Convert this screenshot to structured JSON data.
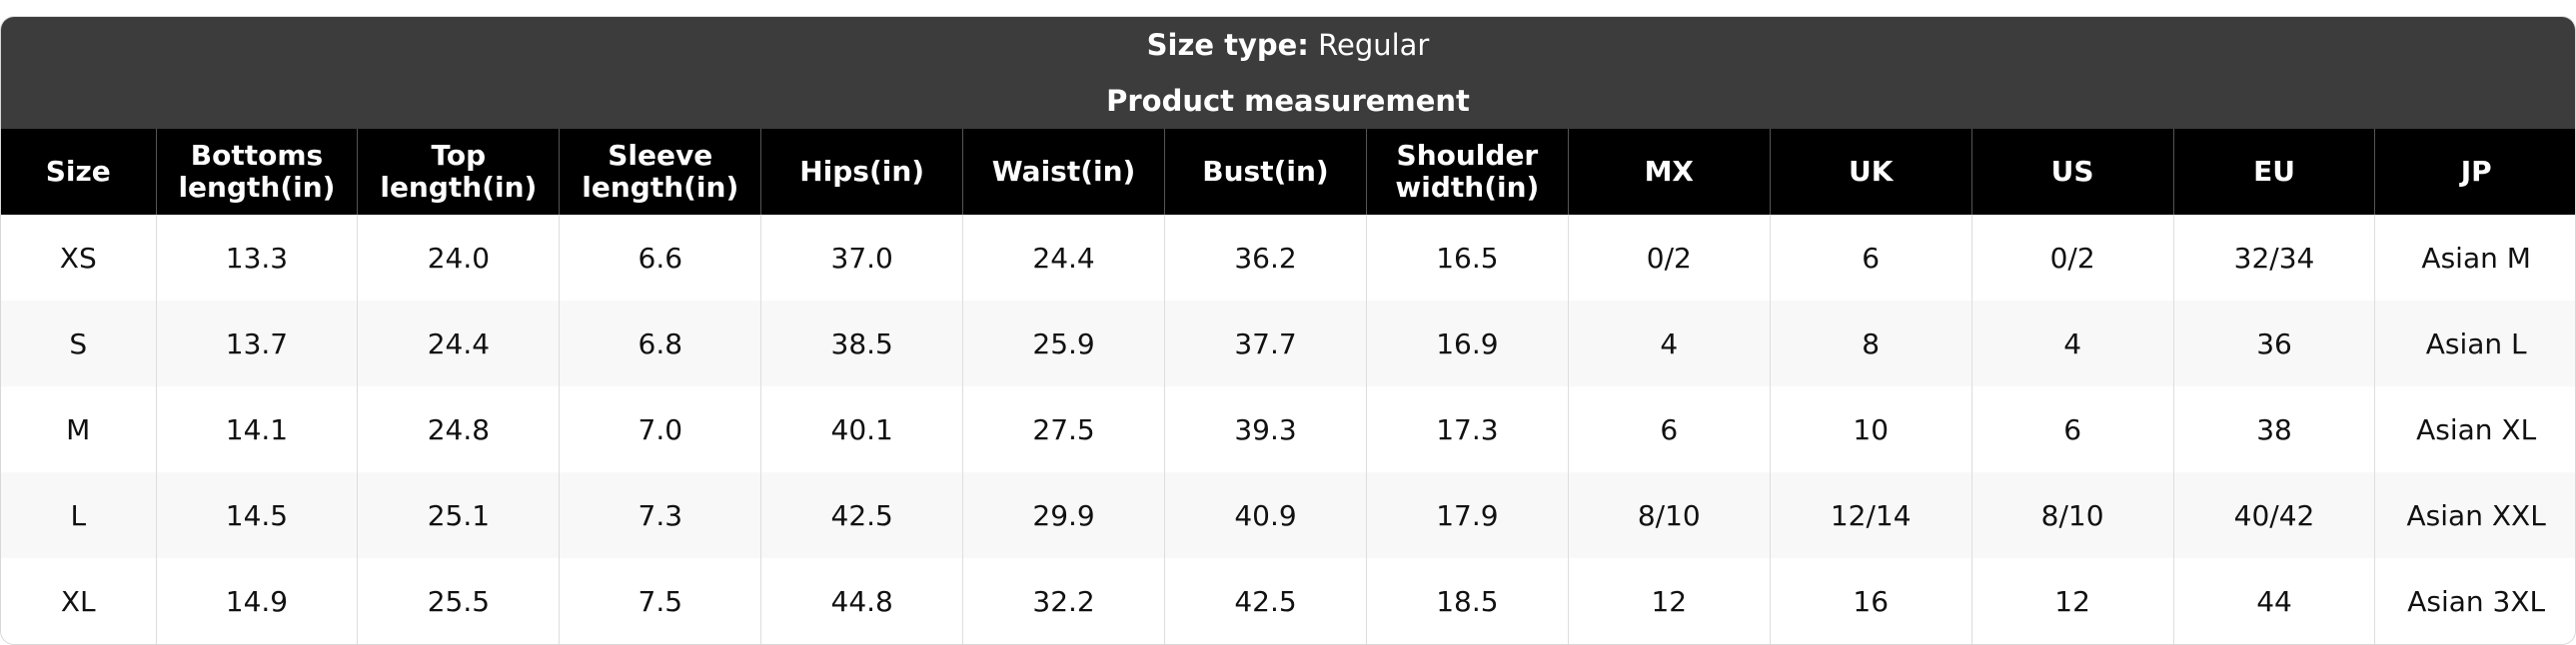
{
  "header": {
    "size_type_label": "Size type:",
    "size_type_value": "Regular",
    "subtitle": "Product measurement"
  },
  "table": {
    "columns": [
      "Size",
      "Bottoms length(in)",
      "Top length(in)",
      "Sleeve length(in)",
      "Hips(in)",
      "Waist(in)",
      "Bust(in)",
      "Shoulder width(in)",
      "MX",
      "UK",
      "US",
      "EU",
      "JP"
    ],
    "rows": [
      [
        "XS",
        "13.3",
        "24.0",
        "6.6",
        "37.0",
        "24.4",
        "36.2",
        "16.5",
        "0/2",
        "6",
        "0/2",
        "32/34",
        "Asian M"
      ],
      [
        "S",
        "13.7",
        "24.4",
        "6.8",
        "38.5",
        "25.9",
        "37.7",
        "16.9",
        "4",
        "8",
        "4",
        "36",
        "Asian L"
      ],
      [
        "M",
        "14.1",
        "24.8",
        "7.0",
        "40.1",
        "27.5",
        "39.3",
        "17.3",
        "6",
        "10",
        "6",
        "38",
        "Asian XL"
      ],
      [
        "L",
        "14.5",
        "25.1",
        "7.3",
        "42.5",
        "29.9",
        "40.9",
        "17.9",
        "8/10",
        "12/14",
        "8/10",
        "40/42",
        "Asian XXL"
      ],
      [
        "XL",
        "14.9",
        "25.5",
        "7.5",
        "44.8",
        "32.2",
        "42.5",
        "18.5",
        "12",
        "16",
        "12",
        "44",
        "Asian 3XL"
      ]
    ]
  }
}
